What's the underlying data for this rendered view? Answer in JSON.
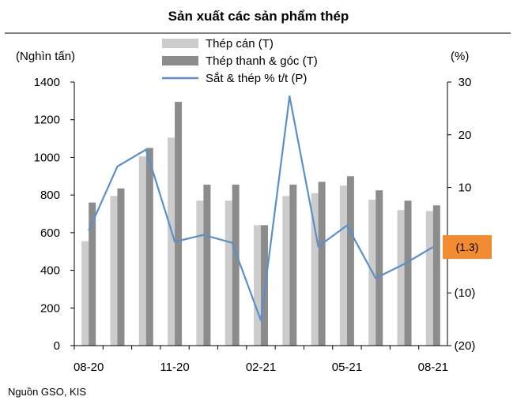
{
  "chart_data": {
    "type": "bar",
    "title": "Sản xuất các sản phẩm thép",
    "y_left_unit": "(Nghìn tấn)",
    "y_right_unit": "(%)",
    "y_left": {
      "min": 0,
      "max": 1400,
      "ticks": [
        "0",
        "200",
        "400",
        "600",
        "800",
        "1000",
        "1200",
        "1400"
      ]
    },
    "y_right": {
      "min": -20,
      "max": 30,
      "ticks": [
        "(20)",
        "(10)",
        "0",
        "10",
        "20",
        "30"
      ]
    },
    "x_tick_labels": [
      "08-20",
      "11-20",
      "02-21",
      "05-21",
      "08-21"
    ],
    "categories": [
      "08-20",
      "09-20",
      "10-20",
      "11-20",
      "12-20",
      "01-21",
      "02-21",
      "03-21",
      "04-21",
      "05-21",
      "06-21",
      "07-21",
      "08-21"
    ],
    "series": [
      {
        "name": "Thép cán (T)",
        "type": "bar",
        "axis": "left",
        "color": "#cccccc",
        "values": [
          555,
          795,
          1005,
          1105,
          770,
          770,
          640,
          795,
          810,
          850,
          775,
          720,
          715
        ]
      },
      {
        "name": "Thép thanh & góc (T)",
        "type": "bar",
        "axis": "left",
        "color": "#8c8c8c",
        "values": [
          760,
          835,
          1050,
          1295,
          855,
          855,
          640,
          855,
          870,
          900,
          825,
          770,
          745
        ]
      },
      {
        "name": "Sắt & thép % t/t (P)",
        "type": "line",
        "axis": "right",
        "color": "#5b8fc9",
        "values": [
          1.8,
          14,
          17.2,
          -0.3,
          1,
          -0.5,
          -15.2,
          27.3,
          -1.2,
          2.8,
          -7.2,
          -4.5,
          -1.3
        ]
      }
    ],
    "annotation": {
      "label": "(1.3)",
      "value": -1.3,
      "color": "#f28b30"
    },
    "legend_position": "top",
    "grid": false
  },
  "source": "Nguồn GSO, KIS"
}
